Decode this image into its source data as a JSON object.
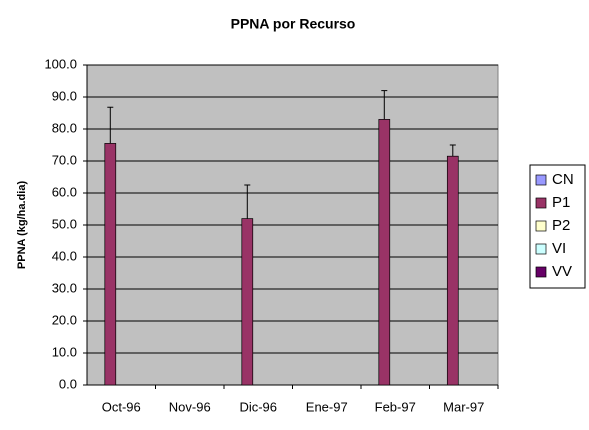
{
  "chart_data": {
    "type": "bar",
    "title": "PPNA por Recurso",
    "y_label": "PPNA (kg/ha.dia)",
    "categories": [
      "Oct-96",
      "Nov-96",
      "Dic-96",
      "Ene-97",
      "Feb-97",
      "Mar-97"
    ],
    "series": [
      {
        "name": "CN",
        "color": "#9999ff",
        "values": [
          null,
          null,
          null,
          null,
          null,
          null
        ],
        "errors": [
          null,
          null,
          null,
          null,
          null,
          null
        ]
      },
      {
        "name": "P1",
        "color": "#993366",
        "values": [
          75.5,
          null,
          52,
          null,
          83,
          71.5
        ],
        "errors": [
          11.3,
          null,
          10.5,
          null,
          9,
          3.5
        ]
      },
      {
        "name": "P2",
        "color": "#ffffcc",
        "values": [
          null,
          null,
          null,
          null,
          null,
          null
        ],
        "errors": [
          null,
          null,
          null,
          null,
          null,
          null
        ]
      },
      {
        "name": "VI",
        "color": "#ccffff",
        "values": [
          null,
          null,
          null,
          null,
          null,
          null
        ],
        "errors": [
          null,
          null,
          null,
          null,
          null,
          null
        ]
      },
      {
        "name": "VV",
        "color": "#660066",
        "values": [
          null,
          null,
          null,
          null,
          null,
          null
        ],
        "errors": [
          null,
          null,
          null,
          null,
          null,
          null
        ]
      }
    ],
    "ylim": [
      0,
      100
    ],
    "yticks": [
      {
        "value": 0,
        "label": "0.0"
      },
      {
        "value": 10,
        "label": "10.0"
      },
      {
        "value": 20,
        "label": "20.0"
      },
      {
        "value": 30,
        "label": "30.0"
      },
      {
        "value": 40,
        "label": "40.0"
      },
      {
        "value": 50,
        "label": "50.0"
      },
      {
        "value": 60,
        "label": "60.0"
      },
      {
        "value": 70,
        "label": "70.0"
      },
      {
        "value": 80,
        "label": "80.0"
      },
      {
        "value": 90,
        "label": "90.0"
      },
      {
        "value": 100,
        "label": "100.0"
      }
    ],
    "grid": true,
    "legend": "right"
  }
}
